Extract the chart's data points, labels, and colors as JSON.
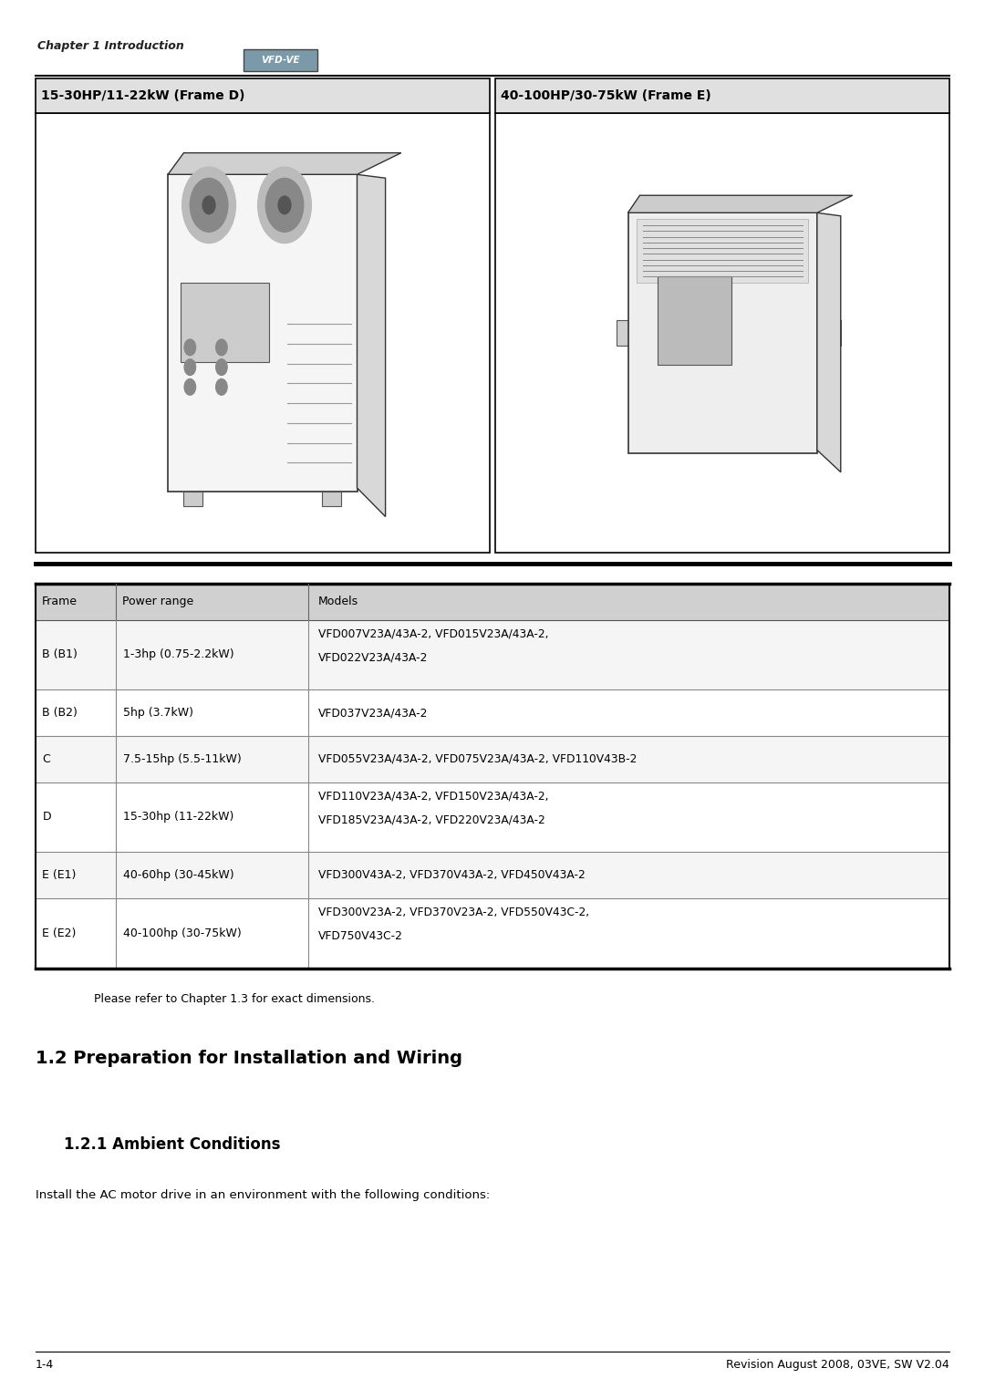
{
  "page_bg": "#ffffff",
  "header_italic_text": "Chapter 1 Introduction",
  "header_logo_text": "VFD-VE",
  "image_header_left": "15-30HP/11-22kW (Frame D)",
  "image_header_right": "40-100HP/30-75kW (Frame E)",
  "table_header": [
    "Frame",
    "Power range",
    "Models"
  ],
  "table_rows": [
    [
      "B (B1)",
      "1-3hp (0.75-2.2kW)",
      "VFD007V23A/43A-2, VFD015V23A/43A-2,\nVFD022V23A/43A-2"
    ],
    [
      "B (B2)",
      "5hp (3.7kW)",
      "VFD037V23A/43A-2"
    ],
    [
      "C",
      "7.5-15hp (5.5-11kW)",
      "VFD055V23A/43A-2, VFD075V23A/43A-2, VFD110V43B-2"
    ],
    [
      "D",
      "15-30hp (11-22kW)",
      "VFD110V23A/43A-2, VFD150V23A/43A-2,\nVFD185V23A/43A-2, VFD220V23A/43A-2"
    ],
    [
      "E (E1)",
      "40-60hp (30-45kW)",
      "VFD300V43A-2, VFD370V43A-2, VFD450V43A-2"
    ],
    [
      "E (E2)",
      "40-100hp (30-75kW)",
      "VFD300V23A-2, VFD370V23A-2, VFD550V43C-2,\nVFD750V43C-2"
    ]
  ],
  "table_row_bg_even": "#f5f5f5",
  "table_row_bg_odd": "#ffffff",
  "note_text": "Please refer to Chapter 1.3 for exact dimensions.",
  "section_title": "1.2 Preparation for Installation and Wiring",
  "subsection_title": "1.2.1 Ambient Conditions",
  "body_text": "Install the AC motor drive in an environment with the following conditions:",
  "footer_left": "1-4",
  "footer_right": "Revision August 2008, 03VE, SW V2.04"
}
